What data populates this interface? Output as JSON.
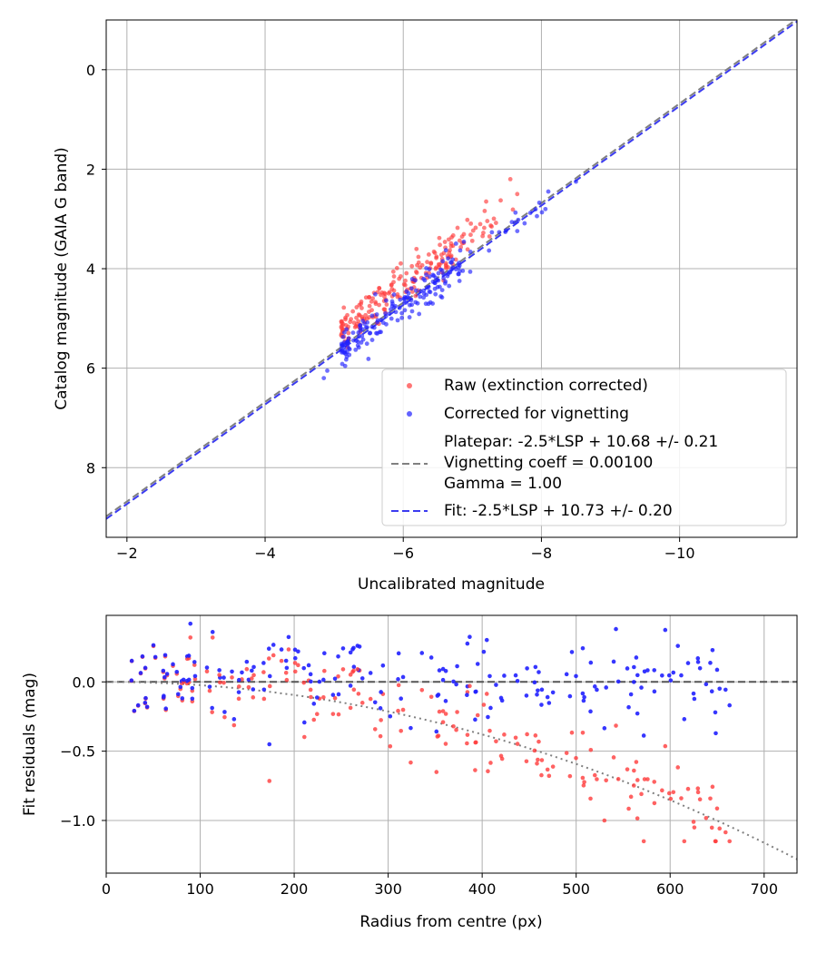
{
  "chart_data": [
    {
      "type": "scatter",
      "xlabel": "Uncalibrated magnitude",
      "ylabel": "Catalog magnitude (GAIA G band)",
      "xlim": [
        -1.7,
        -11.7
      ],
      "ylim": [
        9.4,
        -1.0
      ],
      "xticks": [
        -2,
        -4,
        -6,
        -8,
        -10
      ],
      "xtick_labels": [
        "−2",
        "−4",
        "−6",
        "−8",
        "−10"
      ],
      "yticks": [
        0,
        2,
        4,
        6,
        8
      ],
      "ytick_labels": [
        "0",
        "2",
        "4",
        "6",
        "8"
      ],
      "grid": true,
      "legend_position": "lower-right",
      "legend": {
        "raw": "Raw (extinction corrected)",
        "corrected": "Corrected for vignetting",
        "platepar_1": "Platepar: -2.5*LSP + 10.68 +/- 0.21",
        "platepar_2": "Vignetting coeff = 0.00100",
        "platepar_3": "Gamma = 1.00",
        "fit": "Fit: -2.5*LSP + 10.73 +/- 0.20"
      },
      "series": [
        {
          "name": "Platepar",
          "kind": "line",
          "color": "#808080",
          "slope": 1.0,
          "intercept": 10.68
        },
        {
          "name": "Fit",
          "kind": "line",
          "color": "#3b3bf0",
          "slope": 1.0,
          "intercept": 10.73
        },
        {
          "name": "Raw (extinction corrected)",
          "kind": "scatter",
          "color": "#ff3b3b",
          "generated": {
            "count": 200,
            "x_range": [
              -5.05,
              -7.6
            ],
            "relation": "y = x + 10.3, with scatter",
            "y_range": [
              2.2,
              5.7
            ]
          }
        },
        {
          "name": "Corrected for vignetting",
          "kind": "scatter",
          "color": "#2020ff",
          "generated": {
            "count": 200,
            "x_range": [
              -5.05,
              -8.6
            ],
            "relation": "y = x + 10.75, with scatter",
            "y_range": [
              2.2,
              6.2
            ]
          }
        }
      ]
    },
    {
      "type": "scatter",
      "xlabel": "Radius from centre (px)",
      "ylabel": "Fit residuals (mag)",
      "xlim": [
        0,
        735
      ],
      "ylim": [
        -1.38,
        0.48
      ],
      "xticks": [
        0,
        100,
        200,
        300,
        400,
        500,
        600,
        700
      ],
      "xtick_labels": [
        "0",
        "100",
        "200",
        "300",
        "400",
        "500",
        "600",
        "700"
      ],
      "yticks": [
        0.0,
        -0.5,
        -1.0
      ],
      "ytick_labels": [
        "0.0",
        "−0.5",
        "−1.0"
      ],
      "grid": true,
      "series": [
        {
          "name": "Zero line",
          "kind": "hline",
          "y": 0.0,
          "color": "#555555"
        },
        {
          "name": "Vignetting model",
          "kind": "curve",
          "color": "#808080",
          "x": [
            0,
            100,
            200,
            300,
            400,
            500,
            600,
            735
          ],
          "y": [
            0.0,
            -0.05,
            -0.15,
            -0.26,
            -0.4,
            -0.58,
            -0.82,
            -1.28
          ]
        },
        {
          "name": "Raw residuals",
          "kind": "scatter",
          "color": "#ff3b3b",
          "generated": {
            "count": 200,
            "x_range": [
              25,
              692
            ],
            "y_range": [
              -1.15,
              0.3
            ]
          }
        },
        {
          "name": "Corrected residuals",
          "kind": "scatter",
          "color": "#2020ff",
          "generated": {
            "count": 200,
            "x_range": [
              25,
              692
            ],
            "y_range": [
              -0.45,
              0.4
            ]
          }
        }
      ]
    }
  ]
}
